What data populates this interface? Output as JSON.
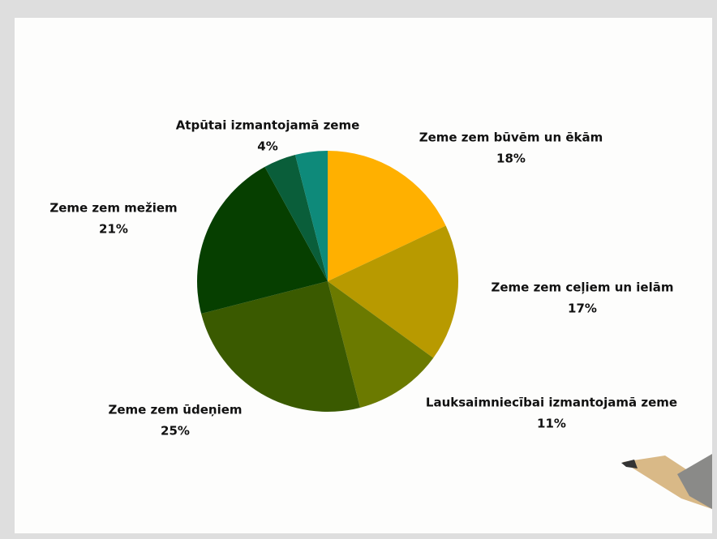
{
  "chart_data": {
    "type": "pie",
    "categories": [
      "Zeme zem būvēm un ēkām",
      "Zeme zem ceļiem un ielām",
      "Lauksaimniecībai izmantojamā zeme",
      "Zeme zem ūdeņiem",
      "Zeme zem mežiem",
      null,
      "Atpūtai izmantojamā zeme"
    ],
    "values": [
      18,
      17,
      11,
      25,
      21,
      4,
      4
    ],
    "value_labels": [
      "18%",
      "17%",
      "11%",
      "25%",
      "21%",
      null,
      "4%"
    ],
    "colors": [
      "#FFB000",
      "#B89A00",
      "#6B7A00",
      "#3A5A00",
      "#063F00",
      "#0A5E3A",
      "#0E8A7A"
    ]
  }
}
